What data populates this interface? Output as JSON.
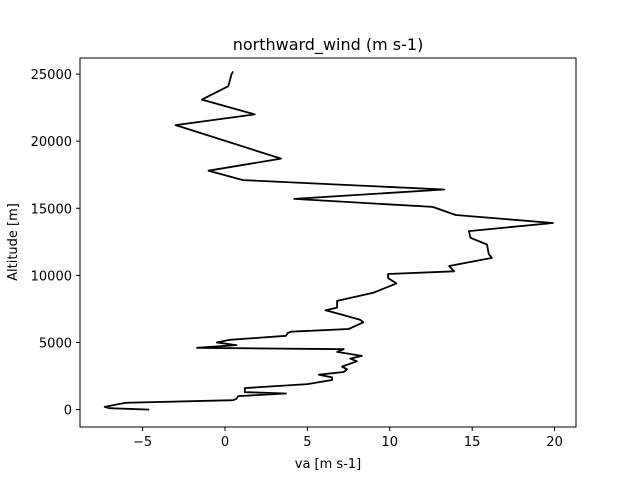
{
  "chart_data": {
    "type": "line",
    "title": "northward_wind (m s-1)",
    "xlabel": "va [m s-1]",
    "ylabel": "Altitude [m]",
    "xlim": [
      -8.8,
      21.3
    ],
    "ylim": [
      -1300,
      26200
    ],
    "xticks": [
      -5,
      0,
      5,
      10,
      15,
      20
    ],
    "xtick_labels": [
      "−5",
      "0",
      "5",
      "10",
      "15",
      "20"
    ],
    "yticks": [
      0,
      5000,
      10000,
      15000,
      20000,
      25000
    ],
    "ytick_labels": [
      "0",
      "5000",
      "10000",
      "15000",
      "20000",
      "25000"
    ],
    "grid": false,
    "series": [
      {
        "color": "#000000",
        "points": [
          [
            -4.6,
            0
          ],
          [
            -7.0,
            100
          ],
          [
            -7.3,
            200
          ],
          [
            -6.5,
            400
          ],
          [
            -6.0,
            500
          ],
          [
            0.5,
            700
          ],
          [
            0.7,
            800
          ],
          [
            0.8,
            1000
          ],
          [
            3.7,
            1200
          ],
          [
            1.2,
            1300
          ],
          [
            1.2,
            1600
          ],
          [
            5.0,
            1900
          ],
          [
            6.5,
            2200
          ],
          [
            6.5,
            2400
          ],
          [
            5.7,
            2600
          ],
          [
            7.2,
            2800
          ],
          [
            7.4,
            3000
          ],
          [
            7.1,
            3200
          ],
          [
            8.0,
            3600
          ],
          [
            7.6,
            3800
          ],
          [
            8.3,
            4000
          ],
          [
            6.8,
            4300
          ],
          [
            7.2,
            4500
          ],
          [
            -1.7,
            4600
          ],
          [
            0.7,
            4800
          ],
          [
            -0.5,
            5000
          ],
          [
            0.3,
            5200
          ],
          [
            1.5,
            5300
          ],
          [
            3.7,
            5500
          ],
          [
            3.8,
            5700
          ],
          [
            4.0,
            5800
          ],
          [
            7.5,
            6000
          ],
          [
            8.4,
            6500
          ],
          [
            8.2,
            6700
          ],
          [
            7.0,
            7100
          ],
          [
            6.1,
            7400
          ],
          [
            6.8,
            7600
          ],
          [
            6.8,
            8100
          ],
          [
            9.0,
            8700
          ],
          [
            10.4,
            9400
          ],
          [
            9.9,
            9800
          ],
          [
            9.9,
            10100
          ],
          [
            13.9,
            10300
          ],
          [
            13.6,
            10700
          ],
          [
            16.2,
            11300
          ],
          [
            16.0,
            11600
          ],
          [
            15.9,
            12300
          ],
          [
            14.9,
            12800
          ],
          [
            14.8,
            13300
          ],
          [
            19.9,
            13900
          ],
          [
            14.0,
            14500
          ],
          [
            12.6,
            15100
          ],
          [
            4.2,
            15700
          ],
          [
            13.3,
            16400
          ],
          [
            1.1,
            17100
          ],
          [
            -1.0,
            17800
          ],
          [
            3.4,
            18700
          ],
          [
            -3.0,
            21200
          ],
          [
            1.8,
            22000
          ],
          [
            -1.4,
            23100
          ],
          [
            0.2,
            24100
          ],
          [
            0.4,
            25000
          ],
          [
            0.5,
            25200
          ]
        ]
      }
    ]
  }
}
